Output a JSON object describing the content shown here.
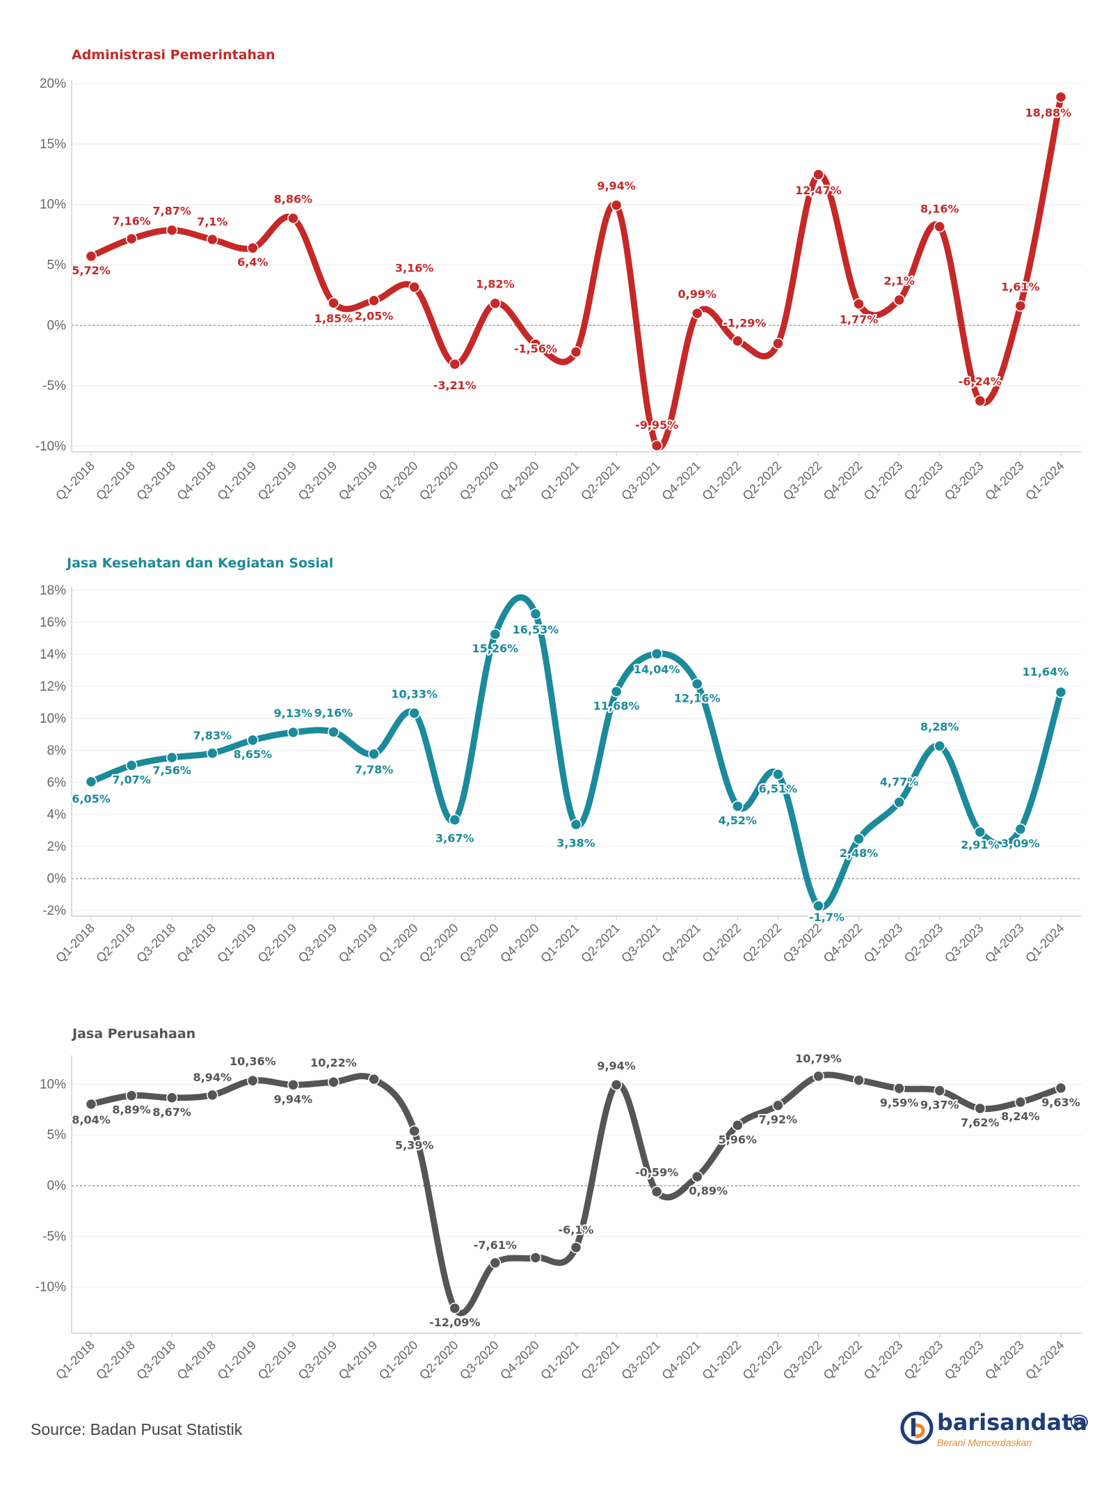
{
  "categories": [
    "Q1-2018",
    "Q2-2018",
    "Q3-2018",
    "Q4-2018",
    "Q1-2019",
    "Q2-2019",
    "Q3-2019",
    "Q4-2019",
    "Q1-2020",
    "Q2-2020",
    "Q3-2020",
    "Q4-2020",
    "Q1-2021",
    "Q2-2021",
    "Q3-2021",
    "Q4-2021",
    "Q1-2022",
    "Q2-2022",
    "Q3-2022",
    "Q4-2022",
    "Q1-2023",
    "Q2-2023",
    "Q3-2023",
    "Q4-2023",
    "Q1-2024"
  ],
  "chart_data": [
    {
      "type": "line",
      "title": "Administrasi Pemerintahan",
      "color": "#c62828",
      "ylim": [
        -10,
        20
      ],
      "yticks": [
        -10,
        -5,
        0,
        5,
        10,
        15,
        20
      ],
      "ytick_labels": [
        "-10%",
        "-5%",
        "0%",
        "5%",
        "10%",
        "15%",
        "20%"
      ],
      "values": [
        5.72,
        7.16,
        7.87,
        7.1,
        6.4,
        8.86,
        1.85,
        2.05,
        3.16,
        -3.21,
        1.82,
        -1.56,
        -2.2,
        9.94,
        -9.95,
        0.99,
        -1.29,
        -1.5,
        12.47,
        1.77,
        2.1,
        8.16,
        -6.24,
        1.61,
        18.88
      ],
      "labels": [
        "5,72%",
        "7,16%",
        "7,87%",
        "7,1%",
        "6,4%",
        "8,86%",
        "1,85%",
        "2,05%",
        "3,16%",
        "-3,21%",
        "1,82%",
        "-1,56%",
        "",
        "9,94%",
        "-9,95%",
        "0,99%",
        "-1,29%",
        "",
        "12,47%",
        "1,77%",
        "2,1%",
        "8,16%",
        "-6,24%",
        "1,61%",
        "18,88%"
      ],
      "grid": true,
      "zero_line": true
    },
    {
      "type": "line",
      "title": "Jasa Kesehatan dan Kegiatan Sosial",
      "color": "#1b8a9a",
      "ylim": [
        -2,
        18
      ],
      "yticks": [
        -2,
        0,
        2,
        4,
        6,
        8,
        10,
        12,
        14,
        16,
        18
      ],
      "ytick_labels": [
        "-2%",
        "0%",
        "2%",
        "4%",
        "6%",
        "8%",
        "10%",
        "12%",
        "14%",
        "16%",
        "18%"
      ],
      "values": [
        6.05,
        7.07,
        7.56,
        7.83,
        8.65,
        9.13,
        9.16,
        7.78,
        10.33,
        3.67,
        15.26,
        16.53,
        3.38,
        11.68,
        14.04,
        12.16,
        4.52,
        6.51,
        -1.7,
        2.48,
        4.77,
        8.28,
        2.91,
        3.09,
        11.64
      ],
      "labels": [
        "6,05%",
        "7,07%",
        "7,56%",
        "7,83%",
        "8,65%",
        "9,13%",
        "9,16%",
        "7,78%",
        "10,33%",
        "3,67%",
        "15,26%",
        "16,53%",
        "3,38%",
        "11,68%",
        "14,04%",
        "12,16%",
        "4,52%",
        "6,51%",
        "-1,7%",
        "2,48%",
        "4,77%",
        "8,28%",
        "2,91%",
        "3,09%",
        "11,64%"
      ],
      "grid": true,
      "zero_line": true
    },
    {
      "type": "line",
      "title": "Jasa Perusahaan",
      "color": "#555555",
      "ylim": [
        -14,
        12.5
      ],
      "yticks": [
        -10,
        -5,
        0,
        5,
        10
      ],
      "ytick_labels": [
        "-10%",
        "-5%",
        "0%",
        "5%",
        "10%"
      ],
      "values": [
        8.04,
        8.89,
        8.67,
        8.94,
        10.36,
        9.94,
        10.22,
        10.5,
        5.39,
        -12.09,
        -7.61,
        -7.1,
        -6.1,
        9.94,
        -0.59,
        0.89,
        5.96,
        7.92,
        10.79,
        10.4,
        9.59,
        9.37,
        7.62,
        8.24,
        9.63
      ],
      "labels": [
        "8,04%",
        "8,89%",
        "8,67%",
        "8,94%",
        "10,36%",
        "9,94%",
        "10,22%",
        "",
        "5,39%",
        "-12,09%",
        "-7,61%",
        "",
        "-6,1%",
        "9,94%",
        "-0,59%",
        "0,89%",
        "5,96%",
        "7,92%",
        "10,79%",
        "",
        "9,59%",
        "9,37%",
        "7,62%",
        "8,24%",
        "9,63%"
      ],
      "grid": true,
      "zero_line": true
    }
  ],
  "footer": {
    "source": "Source: Badan Pusat Statistik",
    "logo_name": "barisandata",
    "logo_suffix": "co",
    "logo_tagline": "Berani Mencerdaskan"
  }
}
